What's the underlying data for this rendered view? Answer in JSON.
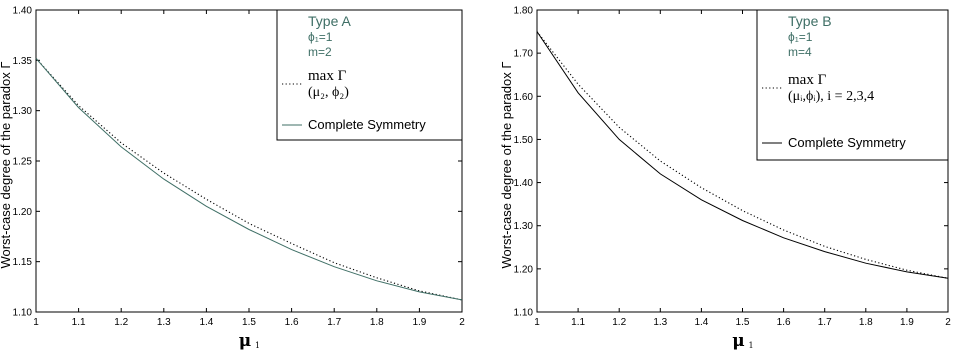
{
  "chart_data": [
    {
      "type": "line",
      "title": "",
      "xlabel": "μ",
      "xlabel_sub": "1",
      "ylabel": "Worst-case degree of the paradox Γ",
      "xlim": [
        1,
        2
      ],
      "ylim": [
        1.1,
        1.4
      ],
      "xticks": [
        "1",
        "1.1",
        "1.2",
        "1.3",
        "1.4",
        "1.5",
        "1.6",
        "1.7",
        "1.8",
        "1.9",
        "2"
      ],
      "yticks": [
        "1.10",
        "1.15",
        "1.20",
        "1.25",
        "1.30",
        "1.35",
        "1.40"
      ],
      "grid": false,
      "legend_position": "top-right",
      "annotation": [
        "Type A",
        "ϕ₁=1",
        "m=2"
      ],
      "series": [
        {
          "name": "max Γ (μ₂, ϕ₂)",
          "name_line1": "max Γ",
          "name_line2": "(μ₂, ϕ₂)",
          "style": "dotted",
          "color": "#000000",
          "x": [
            1.0,
            1.1,
            1.2,
            1.3,
            1.4,
            1.5,
            1.6,
            1.7,
            1.8,
            1.9,
            2.0
          ],
          "y": [
            1.352,
            1.305,
            1.268,
            1.238,
            1.212,
            1.188,
            1.168,
            1.149,
            1.134,
            1.121,
            1.112
          ]
        },
        {
          "name": "Complete Symmetry",
          "style": "solid",
          "color": "#3f6f66",
          "x": [
            1.0,
            1.1,
            1.2,
            1.3,
            1.4,
            1.5,
            1.6,
            1.7,
            1.8,
            1.9,
            2.0
          ],
          "y": [
            1.352,
            1.303,
            1.264,
            1.232,
            1.205,
            1.182,
            1.162,
            1.145,
            1.131,
            1.12,
            1.112
          ]
        }
      ]
    },
    {
      "type": "line",
      "title": "",
      "xlabel": "μ",
      "xlabel_sub": "1",
      "ylabel": "Worst-case degree of the paradox Γ",
      "xlim": [
        1,
        2
      ],
      "ylim": [
        1.1,
        1.8
      ],
      "xticks": [
        "1",
        "1.1",
        "1.2",
        "1.3",
        "1.4",
        "1.5",
        "1.6",
        "1.7",
        "1.8",
        "1.9",
        "2"
      ],
      "yticks": [
        "1.10",
        "1.20",
        "1.30",
        "1.40",
        "1.50",
        "1.60",
        "1.70",
        "1.80"
      ],
      "grid": false,
      "legend_position": "top-right",
      "annotation": [
        "Type B",
        "ϕ₁=1",
        "m=4"
      ],
      "series": [
        {
          "name": "max Γ (μᵢ,ϕᵢ), i = 2,3,4",
          "name_line1": "max Γ",
          "name_line2": "(μᵢ,ϕᵢ), i = 2,3,4",
          "style": "dotted",
          "color": "#000000",
          "x": [
            1.0,
            1.1,
            1.2,
            1.3,
            1.4,
            1.5,
            1.6,
            1.7,
            1.8,
            1.9,
            2.0
          ],
          "y": [
            1.75,
            1.628,
            1.528,
            1.45,
            1.388,
            1.335,
            1.29,
            1.252,
            1.222,
            1.197,
            1.178
          ]
        },
        {
          "name": "Complete Symmetry",
          "style": "solid",
          "color": "#000000",
          "x": [
            1.0,
            1.1,
            1.2,
            1.3,
            1.4,
            1.5,
            1.6,
            1.7,
            1.8,
            1.9,
            2.0
          ],
          "y": [
            1.75,
            1.608,
            1.5,
            1.42,
            1.36,
            1.312,
            1.272,
            1.24,
            1.213,
            1.193,
            1.178
          ]
        }
      ]
    }
  ]
}
